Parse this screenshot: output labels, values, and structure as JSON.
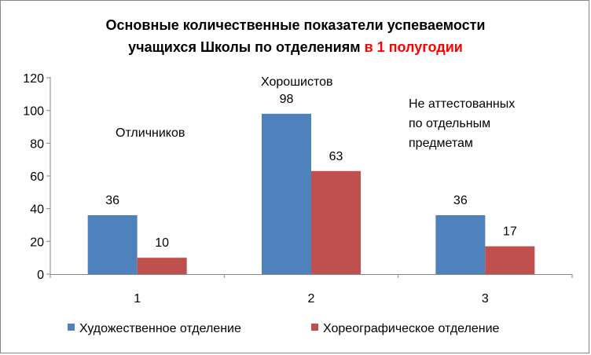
{
  "chart_data": {
    "type": "bar",
    "title_line1": "Основные количественные показатели успеваемости",
    "title_line2_main": "учащихся Школы по отделениям ",
    "title_line2_highlight": "в 1 полугодии",
    "title_highlight_color": "#ff0000",
    "categories": [
      "1",
      "2",
      "3"
    ],
    "series": [
      {
        "name": "Художественное отделение",
        "values": [
          36,
          98,
          36
        ],
        "color": "#4f81bd"
      },
      {
        "name": "Хореографическое отделение",
        "values": [
          10,
          63,
          17
        ],
        "color": "#c0504d"
      }
    ],
    "y_ticks": [
      "0",
      "20",
      "40",
      "60",
      "80",
      "100",
      "120"
    ],
    "ylim": [
      0,
      120
    ],
    "grid": false,
    "legend_position": "bottom",
    "annotations": [
      {
        "lines": [
          "Отличников"
        ]
      },
      {
        "lines": [
          "Хорошистов"
        ]
      },
      {
        "lines": [
          "Не аттестованных",
          "по отдельным",
          "предметам"
        ]
      }
    ]
  }
}
